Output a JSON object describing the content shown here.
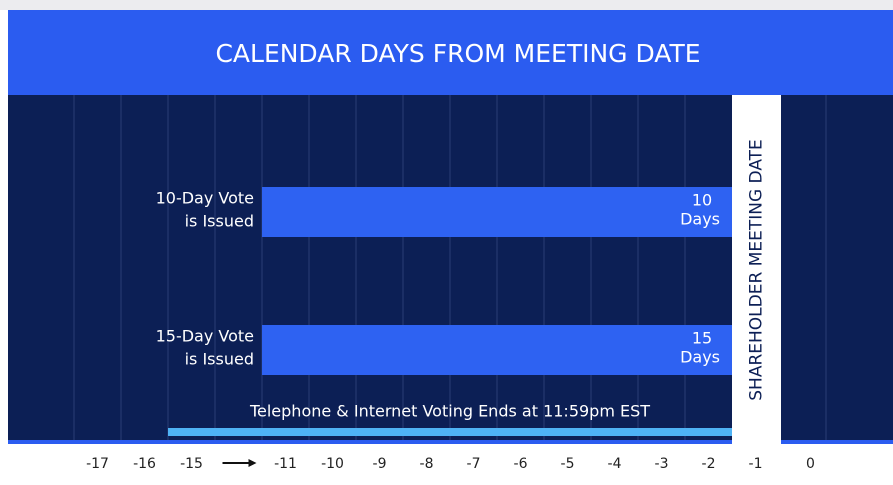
{
  "chart_data": {
    "type": "timeline",
    "title": "CALENDAR DAYS FROM MEETING DATE",
    "categories": [
      "-17",
      "-16",
      "-15",
      null,
      "-11",
      "-10",
      "-9",
      "-8",
      "-7",
      "-6",
      "-5",
      "-4",
      "-3",
      "-2",
      "-1",
      "0"
    ],
    "meeting_label": "SHAREHOLDER MEETING DATE",
    "bars": [
      {
        "label_lines": [
          "10-Day Vote",
          "is Issued"
        ],
        "value": 10,
        "unit": "Days",
        "color": "#2e62f2"
      },
      {
        "label_lines": [
          "15-Day Vote",
          "is Issued"
        ],
        "value": 15,
        "unit": "Days",
        "color": "#2e62f2"
      }
    ],
    "annotation": "Telephone & Internet Voting Ends at 11:59pm EST",
    "annotation_color": "#4fb3f5",
    "background_color": "#0c1f55",
    "header_color": "#2b5cf0"
  }
}
